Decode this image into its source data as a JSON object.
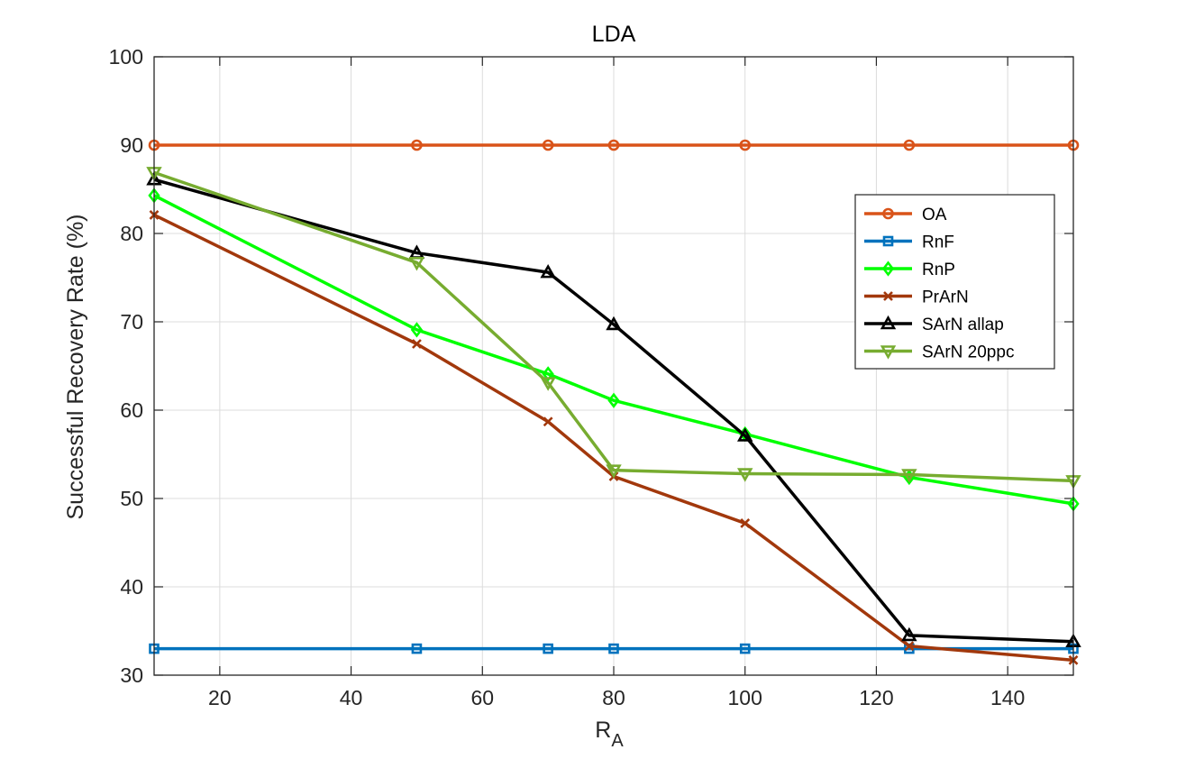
{
  "chart_data": {
    "type": "line",
    "title": "LDA",
    "xlabel": "R",
    "xlabel_subscript": "A",
    "ylabel": "Successful Recovery Rate (%)",
    "xlim": [
      10,
      150
    ],
    "ylim": [
      30,
      100
    ],
    "xticks": [
      20,
      40,
      60,
      80,
      100,
      120,
      140
    ],
    "yticks": [
      30,
      40,
      50,
      60,
      70,
      80,
      90,
      100
    ],
    "grid": true,
    "legend_position": "right",
    "x": [
      10,
      50,
      70,
      80,
      100,
      125,
      150
    ],
    "series": [
      {
        "name": "OA",
        "color": "#D95319",
        "marker": "circle",
        "values": [
          90,
          90,
          90,
          90,
          90,
          90,
          90
        ]
      },
      {
        "name": "RnF",
        "color": "#0072BD",
        "marker": "square",
        "values": [
          33,
          33,
          33,
          33,
          33,
          33,
          33
        ]
      },
      {
        "name": "RnP",
        "color": "#00FF00",
        "marker": "diamond",
        "values": [
          84.3,
          69.1,
          64.1,
          61.1,
          57.3,
          52.4,
          49.4
        ]
      },
      {
        "name": "PrArN",
        "color": "#A2380C",
        "marker": "x",
        "values": [
          82.1,
          67.5,
          58.7,
          52.5,
          47.2,
          33.3,
          31.7
        ]
      },
      {
        "name": "SArN allap",
        "color": "#000000",
        "marker": "triangle-up",
        "values": [
          86.1,
          77.8,
          75.6,
          69.7,
          57.1,
          34.5,
          33.8
        ]
      },
      {
        "name": "SArN 20ppc",
        "color": "#77AC30",
        "marker": "triangle-down",
        "values": [
          86.9,
          76.7,
          63.1,
          53.2,
          52.8,
          52.7,
          52.0
        ]
      }
    ]
  }
}
